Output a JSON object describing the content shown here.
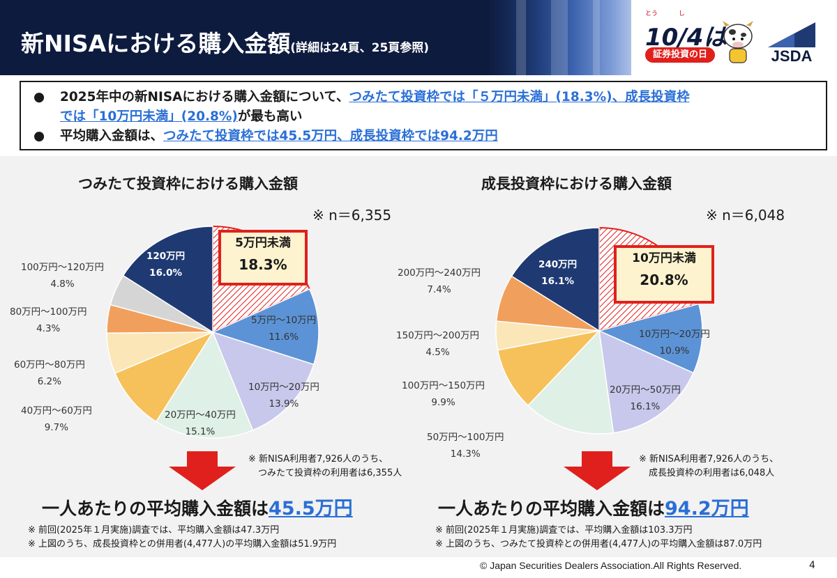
{
  "header": {
    "title": "新NISAにおける購入金額",
    "subtitle": "(詳細は24頁、25頁参照)",
    "logo_ruby": "とう　　　 し",
    "logo_date": "10/4は",
    "logo_badge": "証券投資の日",
    "jsda": "JSDA"
  },
  "summary": {
    "line1_prefix": "2025年中の新NISAにおける購入金額について、",
    "line1_link": "つみたて投資枠では「５万円未満」(18.3%)、成長投資枠",
    "line2_link": "では「10万円未満」(20.8%)",
    "line2_suffix": "が最も高い",
    "line3_prefix": "平均購入金額は、",
    "line3_link": "つみたて投資枠では45.5万円、成長投資枠では94.2万円"
  },
  "chart_data": [
    {
      "type": "pie",
      "title": "つみたて投資枠における購入金額",
      "n_label": "※ n＝6,355",
      "categories": [
        "5万円未満",
        "5万円～10万円",
        "10万円～20万円",
        "20万円～40万円",
        "40万円～60万円",
        "60万円～80万円",
        "80万円～100万円",
        "100万円～120万円",
        "120万円"
      ],
      "values": [
        18.3,
        11.6,
        13.9,
        15.1,
        9.7,
        6.2,
        4.3,
        4.8,
        16.0
      ],
      "value_labels": [
        "18.3%",
        "11.6%",
        "13.9%",
        "15.1%",
        "9.7%",
        "6.2%",
        "4.3%",
        "4.8%",
        "16.0%"
      ],
      "colors": [
        "#f6d2d2",
        "#5b93d6",
        "#c8c8ec",
        "#dff0e6",
        "#f6c15a",
        "#fbe6b8",
        "#f0a05c",
        "#d5d5d5",
        "#1f3a73"
      ],
      "highlight": "5万円未満",
      "note_line1": "※ 新NISA利用者7,926人のうち、",
      "note_line2": "つみたて投資枠の利用者は6,355人",
      "avg_text": "一人あたりの平均購入金額は",
      "avg_value": "45.5万円",
      "foot1": "※ 前回(2025年１月実施)調査では、平均購入金額は47.3万円",
      "foot2": "※ 上図のうち、成長投資枠との併用者(4,477人)の平均購入金額は51.9万円"
    },
    {
      "type": "pie",
      "title": "成長投資枠における購入金額",
      "n_label": "※ n＝6,048",
      "categories": [
        "10万円未満",
        "10万円～20万円",
        "20万円～50万円",
        "50万円～100万円",
        "100万円～150万円",
        "150万円～200万円",
        "200万円～240万円",
        "240万円"
      ],
      "values": [
        20.8,
        10.9,
        16.1,
        14.3,
        9.9,
        4.5,
        7.4,
        16.1
      ],
      "value_labels": [
        "20.8%",
        "10.9%",
        "16.1%",
        "14.3%",
        "9.9%",
        "4.5%",
        "7.4%",
        "16.1%"
      ],
      "colors": [
        "#f6d2d2",
        "#5b93d6",
        "#c8c8ec",
        "#dff0e6",
        "#f6c15a",
        "#fbe6b8",
        "#f0a05c",
        "#1f3a73"
      ],
      "highlight": "10万円未満",
      "note_line1": "※ 新NISA利用者7,926人のうち、",
      "note_line2": "成長投資枠の利用者は6,048人",
      "avg_text": "一人あたりの平均購入金額は",
      "avg_value": "94.2万円",
      "foot1": "※ 前回(2025年１月実施)調査では、平均購入金額は103.3万円",
      "foot2": "※ 上図のうち、つみたて投資枠との併用者(4,477人)の平均購入金額は87.0万円"
    }
  ],
  "footer": {
    "copyright": "©  Japan Securities Dealers Association.All Rights Reserved.",
    "page": "4"
  }
}
